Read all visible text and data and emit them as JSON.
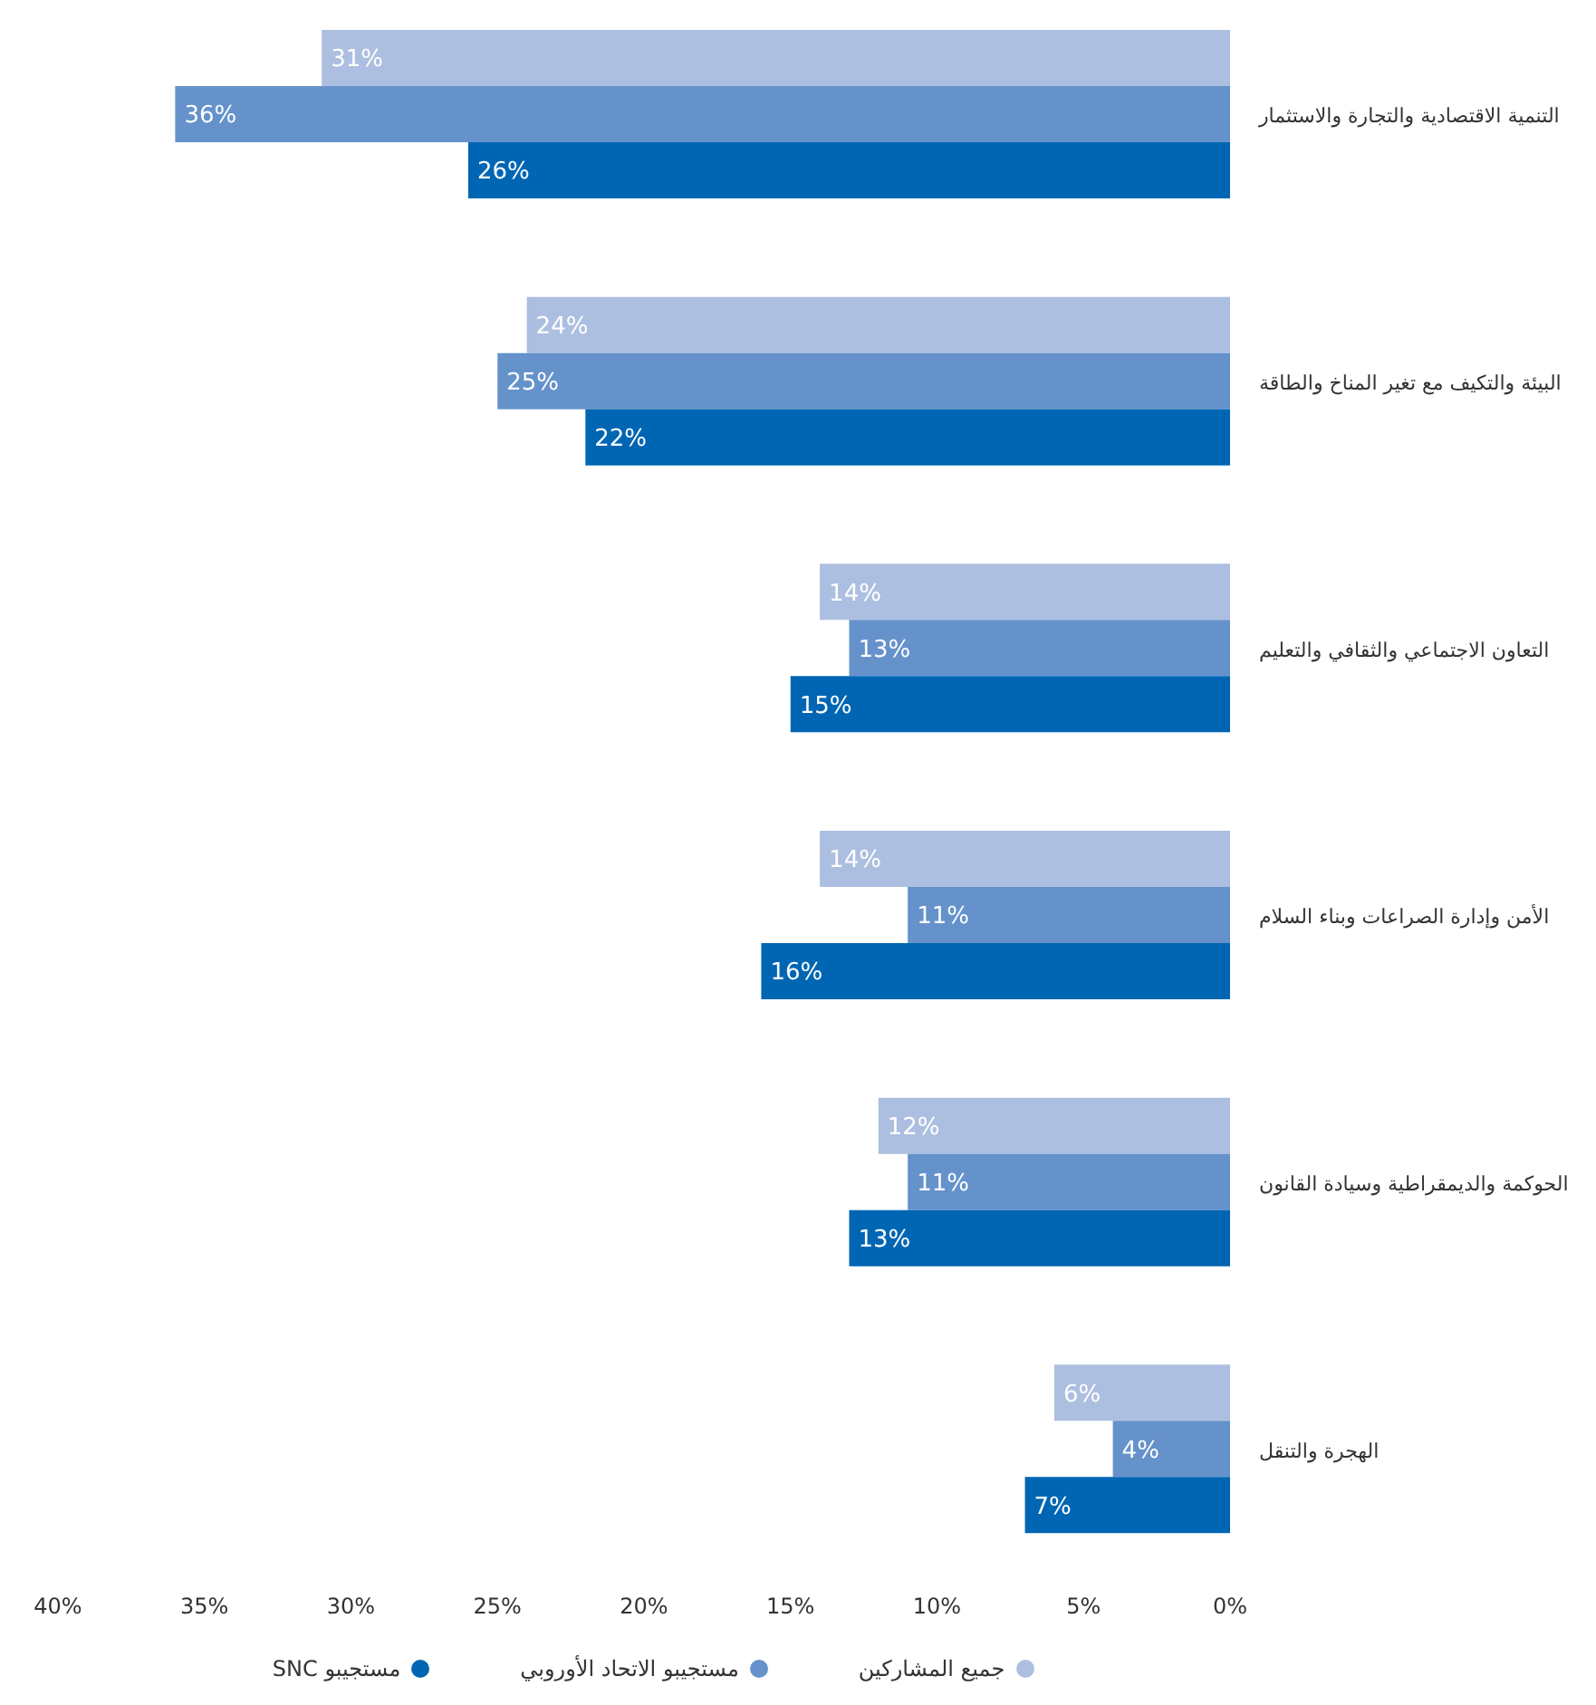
{
  "chart_data": {
    "type": "bar",
    "orientation": "horizontal",
    "categories": [
      "التنمية الاقتصادية والتجارة والاستثمار",
      "البيئة والتكيف مع تغير المناخ والطاقة",
      "التعاون الاجتماعي والثقافي والتعليم",
      "الأمن وإدارة الصراعات وبناء السلام",
      "الحوكمة والديمقراطية وسيادة القانون",
      "الهجرة والتنقل"
    ],
    "series": [
      {
        "name": "جميع المشاركين",
        "color": "#adbfe0",
        "values": [
          31,
          24,
          14,
          14,
          12,
          6
        ],
        "value_labels": [
          "31%",
          "24%",
          "14%",
          "14%",
          "12%",
          "6%"
        ]
      },
      {
        "name": "مستجيبو الاتحاد الأوروبي",
        "color": "#6592cb",
        "values": [
          36,
          25,
          13,
          11,
          11,
          4
        ],
        "value_labels": [
          "36%",
          "25%",
          "13%",
          "11%",
          "11%",
          "4%"
        ]
      },
      {
        "name": "مستجيبو SNC",
        "color": "#0066b3",
        "values": [
          26,
          22,
          15,
          16,
          13,
          7
        ],
        "value_labels": [
          "26%",
          "22%",
          "15%",
          "16%",
          "13%",
          "7%"
        ]
      }
    ],
    "xlim": [
      40,
      0
    ],
    "xticks": [
      {
        "value": 40,
        "label": "40%"
      },
      {
        "value": 35,
        "label": "35%"
      },
      {
        "value": 30,
        "label": "30%"
      },
      {
        "value": 25,
        "label": "25%"
      },
      {
        "value": 20,
        "label": "20%"
      },
      {
        "value": 15,
        "label": "15%"
      },
      {
        "value": 10,
        "label": "10%"
      },
      {
        "value": 5,
        "label": "5%"
      },
      {
        "value": 0,
        "label": "0%"
      }
    ],
    "legend": "bottom",
    "grid": false
  }
}
